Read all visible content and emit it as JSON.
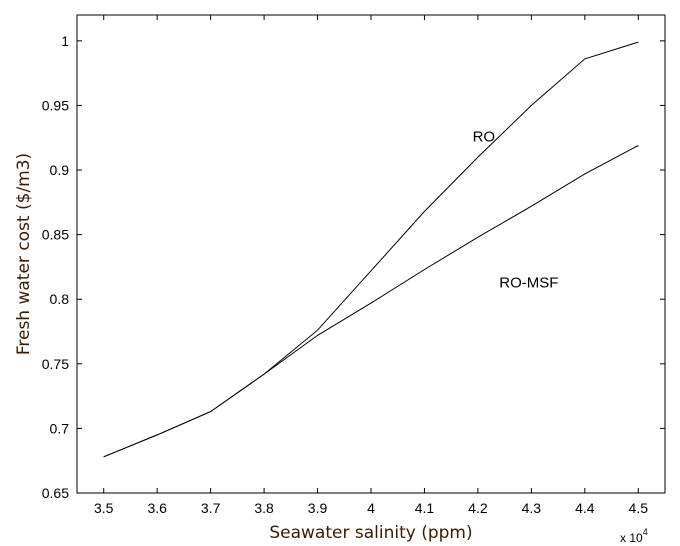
{
  "chart_data": {
    "type": "line",
    "title": "",
    "xlabel": "Seawater salinity (ppm)",
    "ylabel": "Fresh water cost ($/m3)",
    "x_multiplier_base": "x 10",
    "x_multiplier_exp": "4",
    "xlim": [
      3.45,
      4.55
    ],
    "ylim": [
      0.65,
      1.02
    ],
    "x_ticks": [
      3.5,
      3.6,
      3.7,
      3.8,
      3.9,
      4.0,
      4.1,
      4.2,
      4.3,
      4.4,
      4.5
    ],
    "x_tick_labels": [
      "3.5",
      "3.6",
      "3.7",
      "3.8",
      "3.9",
      "4",
      "4.1",
      "4.2",
      "4.3",
      "4.4",
      "4.5"
    ],
    "y_ticks": [
      0.65,
      0.7,
      0.75,
      0.8,
      0.85,
      0.9,
      0.95,
      1.0
    ],
    "y_tick_labels": [
      "0.65",
      "0.7",
      "0.75",
      "0.8",
      "0.85",
      "0.9",
      "0.95",
      "1"
    ],
    "grid": false,
    "series": [
      {
        "name": "RO",
        "x": [
          3.5,
          3.6,
          3.7,
          3.8,
          3.9,
          4.0,
          4.1,
          4.2,
          4.3,
          4.4,
          4.5
        ],
        "y": [
          0.678,
          0.695,
          0.713,
          0.742,
          0.776,
          0.822,
          0.868,
          0.91,
          0.95,
          0.986,
          0.999
        ],
        "label_at": [
          4.19,
          0.922
        ]
      },
      {
        "name": "RO-MSF",
        "x": [
          3.5,
          3.6,
          3.7,
          3.8,
          3.9,
          4.0,
          4.1,
          4.2,
          4.3,
          4.4,
          4.5
        ],
        "y": [
          0.678,
          0.695,
          0.713,
          0.742,
          0.772,
          0.797,
          0.823,
          0.848,
          0.872,
          0.897,
          0.919
        ],
        "label_at": [
          4.24,
          0.809
        ]
      }
    ]
  }
}
